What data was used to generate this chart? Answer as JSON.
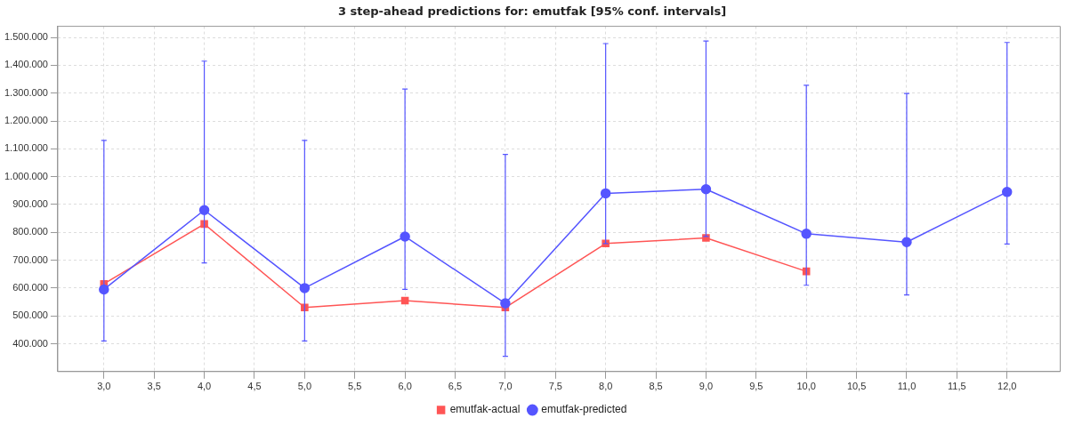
{
  "chart_data": {
    "type": "line",
    "title": "3 step-ahead predictions for: emutfak [95% conf. intervals]",
    "x": [
      3,
      4,
      5,
      6,
      7,
      8,
      9,
      10,
      11,
      12
    ],
    "series": [
      {
        "name": "emutfak-actual",
        "color": "#ff5555",
        "marker": "square",
        "values": [
          615000,
          830000,
          530000,
          555000,
          530000,
          760000,
          780000,
          660000,
          null,
          null
        ]
      },
      {
        "name": "emutfak-predicted",
        "color": "#5555ff",
        "marker": "circle",
        "values": [
          595000,
          880000,
          600000,
          785000,
          545000,
          940000,
          955000,
          795000,
          765000,
          945000
        ],
        "errors": [
          [
            410000,
            1130000
          ],
          [
            690000,
            1415000
          ],
          [
            410000,
            1130000
          ],
          [
            595000,
            1315000
          ],
          [
            355000,
            1080000
          ],
          [
            760000,
            1478000
          ],
          [
            785000,
            1487000
          ],
          [
            610000,
            1328000
          ],
          [
            575000,
            1299000
          ],
          [
            758000,
            1482000
          ]
        ]
      }
    ],
    "xlim": [
      2.54,
      12.53
    ],
    "xticks": [
      {
        "value": 3,
        "label": "3,0"
      },
      {
        "value": 3.5,
        "label": "3,5"
      },
      {
        "value": 4,
        "label": "4,0"
      },
      {
        "value": 4.5,
        "label": "4,5"
      },
      {
        "value": 5,
        "label": "5,0"
      },
      {
        "value": 5.5,
        "label": "5,5"
      },
      {
        "value": 6,
        "label": "6,0"
      },
      {
        "value": 6.5,
        "label": "6,5"
      },
      {
        "value": 7,
        "label": "7,0"
      },
      {
        "value": 7.5,
        "label": "7,5"
      },
      {
        "value": 8,
        "label": "8,0"
      },
      {
        "value": 8.5,
        "label": "8,5"
      },
      {
        "value": 9,
        "label": "9,0"
      },
      {
        "value": 9.5,
        "label": "9,5"
      },
      {
        "value": 10,
        "label": "10,0"
      },
      {
        "value": 10.5,
        "label": "10,5"
      },
      {
        "value": 11,
        "label": "11,0"
      },
      {
        "value": 11.5,
        "label": "11,5"
      },
      {
        "value": 12,
        "label": "12,0"
      }
    ],
    "ylim": [
      300000,
      1540000
    ],
    "yticks": [
      {
        "value": 400000,
        "label": "400.000"
      },
      {
        "value": 500000,
        "label": "500.000"
      },
      {
        "value": 600000,
        "label": "600.000"
      },
      {
        "value": 700000,
        "label": "700.000"
      },
      {
        "value": 800000,
        "label": "800.000"
      },
      {
        "value": 900000,
        "label": "900.000"
      },
      {
        "value": 1000000,
        "label": "1.000.000"
      },
      {
        "value": 1100000,
        "label": "1.100.000"
      },
      {
        "value": 1200000,
        "label": "1.200.000"
      },
      {
        "value": 1300000,
        "label": "1.300.000"
      },
      {
        "value": 1400000,
        "label": "1.400.000"
      },
      {
        "value": 1500000,
        "label": "1.500.000"
      }
    ],
    "grid": true,
    "legend": "bottom",
    "line_style": "solid"
  }
}
